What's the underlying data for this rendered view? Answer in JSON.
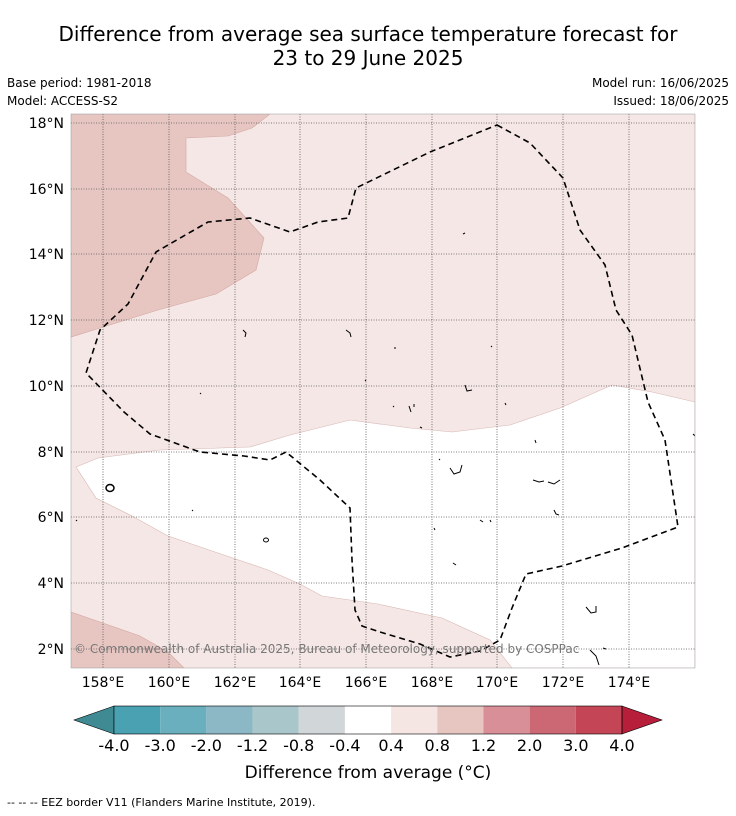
{
  "title_line1": "Difference from average sea surface temperature forecast for",
  "title_line2": "23 to 29 June 2025",
  "base_period": "Base period: 1981-2018",
  "model": "Model: ACCESS-S2",
  "model_run": "Model run: 16/06/2025",
  "issued": "Issued: 18/06/2025",
  "copyright": "© Commonwealth of Australia 2025, Bureau of Meteorology, supported by COSPPac",
  "lat_labels": [
    "18°N",
    "16°N",
    "14°N",
    "12°N",
    "10°N",
    "8°N",
    "6°N",
    "4°N",
    "2°N"
  ],
  "lon_labels": [
    "158°E",
    "160°E",
    "162°E",
    "164°E",
    "166°E",
    "168°E",
    "170°E",
    "172°E",
    "174°E"
  ],
  "colorbar": {
    "title": "Difference from average (°C)",
    "tick_labels": [
      "-4.0",
      "-3.0",
      "-2.0",
      "-1.2",
      "-0.8",
      "-0.4",
      "0.4",
      "0.8",
      "1.2",
      "2.0",
      "3.0",
      "4.0"
    ],
    "colors": [
      "#408a93",
      "#4aa1b1",
      "#6aafbe",
      "#8cb8c5",
      "#a9c6cb",
      "#d1d6d8",
      "#ffffff",
      "#f5e6e4",
      "#e7c5c1",
      "#d98f98",
      "#cc6774",
      "#c44556",
      "#b61e3a"
    ]
  },
  "legend_note": "--  --  -- EEZ border V11 (Flanders Marine Institute, 2019).",
  "colors": {
    "light_pink": "#f5e7e5",
    "mid_pink": "#e7c6c2",
    "white": "#ffffff"
  }
}
